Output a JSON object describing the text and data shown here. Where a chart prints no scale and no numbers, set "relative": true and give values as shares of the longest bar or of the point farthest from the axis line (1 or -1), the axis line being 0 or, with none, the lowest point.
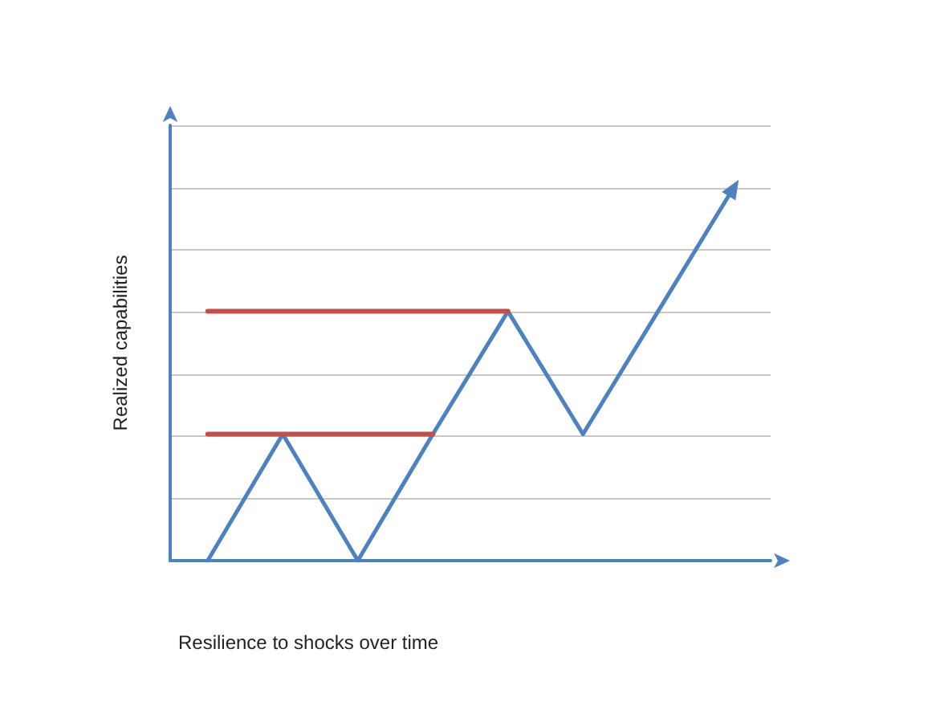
{
  "chart_data": {
    "type": "line",
    "xlabel": "Resilience to shocks over time",
    "ylabel": "Realized capabilities",
    "relative": true,
    "grid": "y",
    "line_style": "solid",
    "categories": [
      null,
      null,
      null,
      null,
      null,
      null,
      null,
      null
    ],
    "series": [
      {
        "color": "#4f81bd",
        "values": [
          0,
          0.34,
          0,
          0.34,
          0.67,
          0.34,
          0.67,
          1
        ]
      },
      {
        "color": "#c0504d",
        "values": [
          0.67,
          0.67,
          0.67,
          0.67,
          0.67,
          null,
          null,
          null
        ]
      },
      {
        "color": "#c0504d",
        "values": [
          0.34,
          0.34,
          0.34,
          0.34,
          null,
          null,
          null,
          null
        ]
      }
    ]
  }
}
